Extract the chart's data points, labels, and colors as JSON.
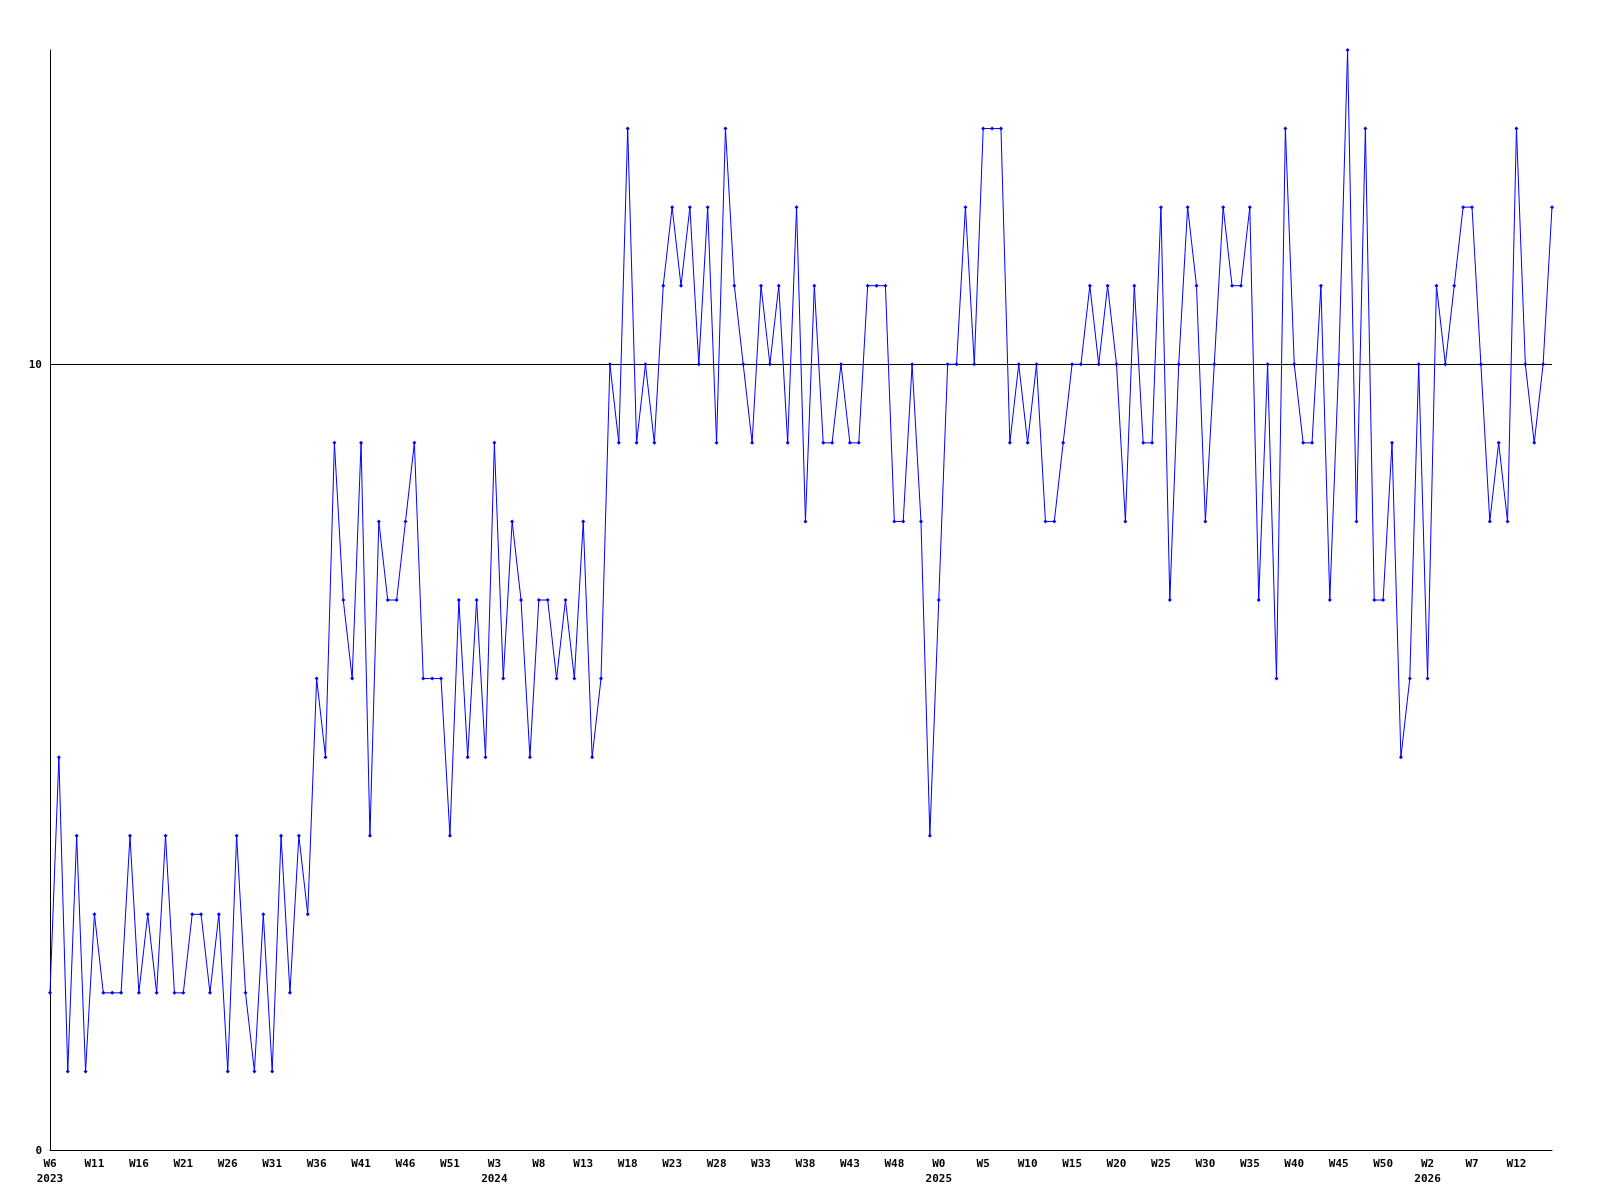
{
  "chart_data": {
    "type": "line",
    "categories": [
      "W6\n2023",
      null,
      null,
      null,
      null,
      "W11",
      null,
      null,
      null,
      null,
      "W16",
      null,
      null,
      null,
      null,
      "W21",
      null,
      null,
      null,
      null,
      "W26",
      null,
      null,
      null,
      null,
      "W31",
      null,
      null,
      null,
      null,
      "W36",
      null,
      null,
      null,
      null,
      "W41",
      null,
      null,
      null,
      null,
      "W46",
      null,
      null,
      null,
      null,
      "W51",
      null,
      null,
      null,
      null,
      "W3\n2024",
      null,
      null,
      null,
      null,
      "W8",
      null,
      null,
      null,
      null,
      "W13",
      null,
      null,
      null,
      null,
      "W18",
      null,
      null,
      null,
      null,
      "W23",
      null,
      null,
      null,
      null,
      "W28",
      null,
      null,
      null,
      null,
      "W33",
      null,
      null,
      null,
      null,
      "W38",
      null,
      null,
      null,
      null,
      "W43",
      null,
      null,
      null,
      null,
      "W48",
      null,
      null,
      null,
      null,
      "W0\n2025",
      null,
      null,
      null,
      null,
      "W5",
      null,
      null,
      null,
      null,
      "W10",
      null,
      null,
      null,
      null,
      "W15",
      null,
      null,
      null,
      null,
      "W20",
      null,
      null,
      null,
      null,
      "W25",
      null,
      null,
      null,
      null,
      "W30",
      null,
      null,
      null,
      null,
      "W35",
      null,
      null,
      null,
      null,
      "W40",
      null,
      null,
      null,
      null,
      "W45",
      null,
      null,
      null,
      null,
      "W50",
      null,
      null,
      null,
      null,
      "W2\n2026",
      null,
      null,
      null,
      null,
      "W7",
      null,
      null,
      null,
      null,
      "W12",
      null,
      null,
      null,
      null
    ],
    "series": [
      {
        "color": "#0000ff",
        "values": [
          2,
          5,
          1,
          4,
          1,
          3,
          2,
          2,
          2,
          4,
          2,
          3,
          2,
          4,
          2,
          2,
          3,
          3,
          2,
          3,
          1,
          4,
          2,
          1,
          3,
          1,
          4,
          2,
          4,
          3,
          6,
          5,
          9,
          7,
          6,
          9,
          4,
          8,
          7,
          7,
          8,
          9,
          6,
          6,
          6,
          4,
          7,
          5,
          7,
          5,
          9,
          6,
          8,
          7,
          5,
          7,
          7,
          6,
          7,
          6,
          8,
          5,
          6,
          10,
          9,
          13,
          9,
          10,
          9,
          11,
          12,
          11,
          12,
          10,
          12,
          9,
          13,
          11,
          10,
          9,
          11,
          10,
          11,
          9,
          12,
          8,
          11,
          9,
          9,
          10,
          9,
          9,
          11,
          11,
          11,
          8,
          8,
          10,
          8,
          4,
          7,
          10,
          10,
          12,
          10,
          13,
          13,
          13,
          9,
          10,
          9,
          10,
          8,
          8,
          9,
          10,
          10,
          11,
          10,
          11,
          10,
          8,
          11,
          9,
          9,
          12,
          7,
          10,
          12,
          11,
          8,
          10,
          12,
          11,
          11,
          12,
          7,
          10,
          6,
          13,
          10,
          9,
          9,
          11,
          7,
          10,
          14,
          8,
          13,
          7,
          7,
          9,
          5,
          6,
          10,
          6,
          11,
          10,
          11,
          12,
          12,
          10,
          8,
          9,
          8,
          13,
          10,
          9,
          10,
          12
        ]
      }
    ],
    "ylim": [
      0,
      14
    ],
    "yticks": [
      0,
      10
    ],
    "grid": "y",
    "marker": "diamond",
    "line_style": "solid"
  }
}
